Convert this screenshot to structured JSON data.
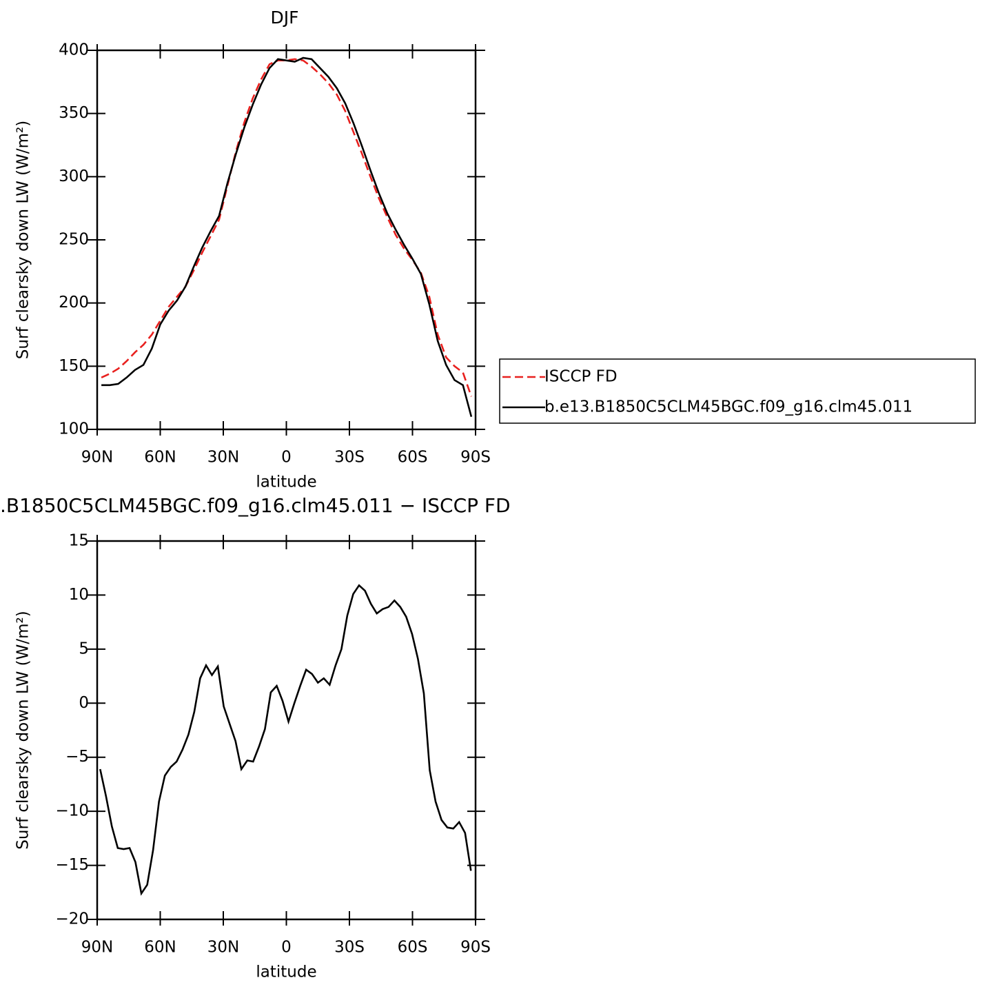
{
  "chart_data": [
    {
      "type": "line",
      "title": "DJF",
      "xlabel": "latitude",
      "ylabel": "Surf clearsky down LW (W/m²)",
      "xlim": [
        90,
        -90
      ],
      "ylim": [
        100,
        400
      ],
      "xticks": [
        {
          "value": 90,
          "label": "90N"
        },
        {
          "value": 60,
          "label": "60N"
        },
        {
          "value": 30,
          "label": "30N"
        },
        0,
        {
          "value": -30,
          "label": "30S"
        },
        {
          "value": -60,
          "label": "60S"
        },
        {
          "value": -90,
          "label": "90S"
        }
      ],
      "yticks": [
        100,
        150,
        200,
        250,
        300,
        350,
        400
      ],
      "legend": "right",
      "x": [
        88,
        84,
        80,
        76,
        72,
        68,
        64,
        60,
        56,
        52,
        48,
        44,
        40,
        36,
        32,
        28,
        24,
        20,
        16,
        12,
        8,
        4,
        0,
        -4,
        -8,
        -12,
        -16,
        -20,
        -24,
        -28,
        -32,
        -36,
        -40,
        -44,
        -48,
        -52,
        -56,
        -60,
        -64,
        -68,
        -72,
        -76,
        -80,
        -84,
        -88
      ],
      "series": [
        {
          "name": "ISCCP FD",
          "color": "#e8201e",
          "dash": "dashed",
          "values": [
            141,
            144,
            148,
            154,
            161,
            167,
            175,
            186,
            197,
            205,
            213,
            226,
            240,
            253,
            266,
            293,
            320,
            343,
            362,
            377,
            389,
            392,
            392,
            393,
            392,
            387,
            381,
            374,
            365,
            352,
            335,
            318,
            300,
            283,
            268,
            254,
            243,
            234,
            224,
            205,
            175,
            157,
            150,
            145,
            126
          ]
        },
        {
          "name": "b.e13.B1850C5CLM45BGC.f09_g16.clm45.011",
          "color": "#000000",
          "dash": "solid",
          "values": [
            135,
            135,
            136,
            141,
            147,
            151,
            164,
            183,
            194,
            202,
            213,
            229,
            244,
            257,
            269,
            295,
            318,
            339,
            357,
            373,
            386,
            393,
            392,
            391,
            394,
            393,
            386,
            379,
            370,
            358,
            342,
            324,
            305,
            287,
            271,
            258,
            246,
            235,
            223,
            199,
            170,
            151,
            139,
            135,
            110
          ]
        }
      ]
    },
    {
      "type": "line",
      "title": ".B1850C5CLM45BGC.f09_g16.clm45.011 − ISCCP FD",
      "xlabel": "latitude",
      "ylabel": "Surf clearsky down LW (W/m²)",
      "xlim": [
        90,
        -90
      ],
      "ylim": [
        -20,
        15
      ],
      "xticks": [
        {
          "value": 90,
          "label": "90N"
        },
        {
          "value": 60,
          "label": "60N"
        },
        {
          "value": 30,
          "label": "30N"
        },
        0,
        {
          "value": -30,
          "label": "30S"
        },
        {
          "value": -60,
          "label": "60S"
        },
        {
          "value": -90,
          "label": "90S"
        }
      ],
      "yticks": [
        {
          "value": -20,
          "label": "−20"
        },
        {
          "value": -15,
          "label": "−15"
        },
        {
          "value": -10,
          "label": "−10"
        },
        {
          "value": -5,
          "label": "−5"
        },
        0,
        5,
        10,
        15
      ],
      "x": [
        88.6,
        85.8,
        83,
        80.2,
        77.4,
        74.6,
        71.8,
        69,
        66.2,
        63.4,
        60.6,
        57.8,
        55,
        52.2,
        49.4,
        46.6,
        43.8,
        41,
        38.2,
        35.4,
        32.6,
        29.8,
        27,
        24.2,
        21.4,
        18.6,
        15.8,
        13,
        10.2,
        7.4,
        4.6,
        1.8,
        -1,
        -3.8,
        -6.6,
        -9.4,
        -12.2,
        -15,
        -17.8,
        -20.6,
        -23.4,
        -26.2,
        -29,
        -31.8,
        -34.6,
        -37.4,
        -40.2,
        -43,
        -45.8,
        -48.6,
        -51.4,
        -54.2,
        -57,
        -59.8,
        -62.6,
        -65.4,
        -68.2,
        -71,
        -73.8,
        -76.6,
        -79.4,
        -82.2,
        -85,
        -87.8
      ],
      "series": [
        {
          "color": "#000000",
          "dash": "solid",
          "values": [
            -6.1,
            -8.6,
            -11.4,
            -13.4,
            -13.5,
            -13.4,
            -14.7,
            -17.6,
            -16.8,
            -13.6,
            -9.1,
            -6.7,
            -5.9,
            -5.4,
            -4.3,
            -2.9,
            -0.8,
            2.3,
            3.5,
            2.6,
            3.4,
            -0.3,
            -1.9,
            -3.5,
            -6.1,
            -5.3,
            -5.4,
            -4,
            -2.4,
            1.0,
            1.6,
            0.2,
            -1.7,
            0,
            1.6,
            3.1,
            2.7,
            1.9,
            2.3,
            1.7,
            3.5,
            5,
            8.1,
            10.1,
            10.9,
            10.4,
            9.2,
            8.3,
            8.7,
            8.9,
            9.5,
            8.9,
            8,
            6.4,
            4.1,
            0.9,
            -6.2,
            -9.1,
            -10.8,
            -11.5,
            -11.6,
            -11,
            -12,
            -15.5
          ]
        }
      ]
    }
  ]
}
